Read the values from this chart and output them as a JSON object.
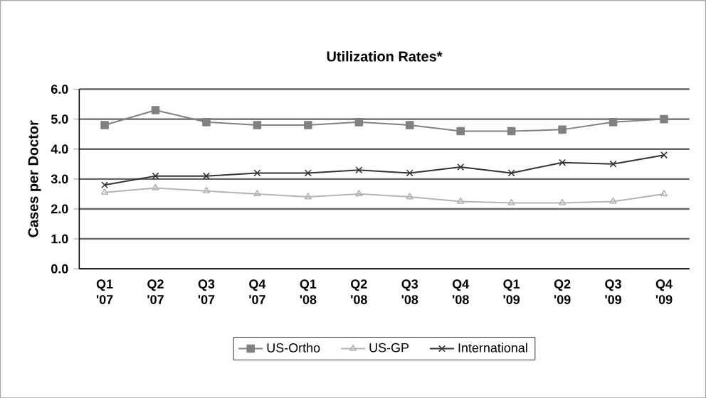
{
  "chart_data": {
    "type": "line",
    "title": "Utilization Rates*",
    "ylabel": "Cases per Doctor",
    "categories": [
      "Q1 '07",
      "Q2 '07",
      "Q3 '07",
      "Q4 '07",
      "Q1 '08",
      "Q2 '08",
      "Q3 '08",
      "Q4 '08",
      "Q1 '09",
      "Q2 '09",
      "Q3 '09",
      "Q4 '09"
    ],
    "series": [
      {
        "name": "US-Ortho",
        "color": "#808080",
        "marker": "square",
        "values": [
          4.8,
          5.3,
          4.9,
          4.8,
          4.8,
          4.9,
          4.8,
          4.6,
          4.6,
          4.65,
          4.9,
          5.0
        ]
      },
      {
        "name": "US-GP",
        "color": "#b4b4b4",
        "marker": "triangle",
        "values": [
          2.55,
          2.7,
          2.6,
          2.5,
          2.4,
          2.5,
          2.4,
          2.25,
          2.2,
          2.2,
          2.25,
          2.5
        ]
      },
      {
        "name": "International",
        "color": "#333333",
        "marker": "cross",
        "values": [
          2.8,
          3.1,
          3.1,
          3.2,
          3.2,
          3.3,
          3.2,
          3.4,
          3.2,
          3.55,
          3.5,
          3.8
        ]
      }
    ],
    "ylim": [
      0,
      6
    ],
    "yticks": [
      {
        "value": 0,
        "label": "0.0"
      },
      {
        "value": 1,
        "label": "1.0"
      },
      {
        "value": 2,
        "label": "2.0"
      },
      {
        "value": 3,
        "label": "3.0"
      },
      {
        "value": 4,
        "label": "4.0"
      },
      {
        "value": 5,
        "label": "5.0"
      },
      {
        "value": 6,
        "label": "6.0"
      }
    ],
    "grid": "y",
    "legend": "bottom"
  }
}
